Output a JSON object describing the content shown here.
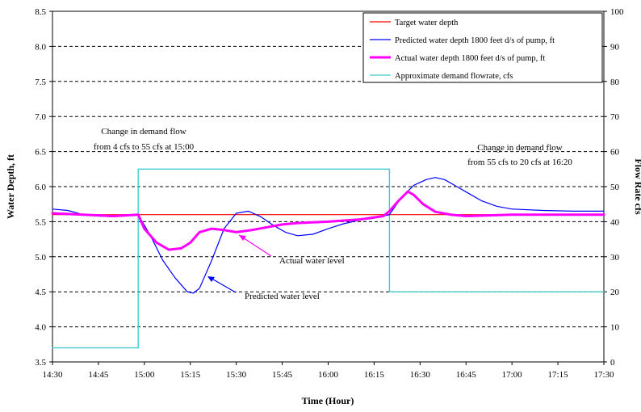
{
  "chart_data": {
    "type": "line",
    "xlabel": "Time (Hour)",
    "ylabel_left": "Water Depth, ft",
    "ylabel_right": "Flow Rate cfs",
    "x_ticks": [
      "14:30",
      "14:45",
      "15:00",
      "15:15",
      "15:30",
      "15:45",
      "16:00",
      "16:15",
      "16:30",
      "16:45",
      "17:00",
      "17:15",
      "17:30"
    ],
    "x_range_minutes": [
      0,
      180
    ],
    "ylim_left": [
      3.5,
      8.5
    ],
    "ylim_right": [
      0,
      100
    ],
    "y_ticks_left": [
      "3.5",
      "4.0",
      "4.5",
      "5.0",
      "5.5",
      "6.0",
      "6.5",
      "7.0",
      "7.5",
      "8.0",
      "8.5"
    ],
    "y_ticks_right": [
      "0",
      "10",
      "20",
      "30",
      "40",
      "50",
      "60",
      "70",
      "80",
      "90",
      "100"
    ],
    "grid": "horizontal dashed",
    "legend_position": "top-right",
    "series": [
      {
        "name": "Target water depth",
        "axis": "left",
        "color": "#ff0000",
        "x": [
          "14:30",
          "17:30"
        ],
        "y": [
          5.6,
          5.6
        ]
      },
      {
        "name": "Predicted water depth 1800 feet d/s of pump, ft",
        "axis": "left",
        "color": "#0000ff",
        "x": [
          "14:30",
          "14:35",
          "14:40",
          "14:45",
          "14:50",
          "14:55",
          "14:58",
          "15:02",
          "15:06",
          "15:10",
          "15:14",
          "15:16",
          "15:18",
          "15:22",
          "15:26",
          "15:30",
          "15:34",
          "15:38",
          "15:42",
          "15:46",
          "15:50",
          "15:55",
          "16:00",
          "16:05",
          "16:10",
          "16:15",
          "16:18",
          "16:20",
          "16:24",
          "16:28",
          "16:32",
          "16:35",
          "16:38",
          "16:42",
          "16:46",
          "16:50",
          "16:55",
          "17:00",
          "17:10",
          "17:20",
          "17:30"
        ],
        "y": [
          5.68,
          5.66,
          5.6,
          5.58,
          5.57,
          5.6,
          5.6,
          5.3,
          4.95,
          4.7,
          4.5,
          4.48,
          4.55,
          4.95,
          5.4,
          5.62,
          5.65,
          5.57,
          5.45,
          5.35,
          5.3,
          5.32,
          5.4,
          5.47,
          5.52,
          5.55,
          5.58,
          5.6,
          5.85,
          6.02,
          6.1,
          6.13,
          6.1,
          6.0,
          5.9,
          5.8,
          5.72,
          5.68,
          5.66,
          5.65,
          5.65
        ]
      },
      {
        "name": "Actual water depth 1800 feet d/s of pump, ft",
        "axis": "left",
        "color": "#ff00ff",
        "x": [
          "14:30",
          "14:40",
          "14:50",
          "14:58",
          "15:00",
          "15:04",
          "15:08",
          "15:12",
          "15:15",
          "15:18",
          "15:22",
          "15:26",
          "15:30",
          "15:35",
          "15:40",
          "15:45",
          "15:50",
          "16:00",
          "16:10",
          "16:18",
          "16:20",
          "16:23",
          "16:26",
          "16:28",
          "16:31",
          "16:35",
          "16:40",
          "16:45",
          "17:00",
          "17:15",
          "17:30"
        ],
        "y": [
          5.62,
          5.6,
          5.58,
          5.6,
          5.4,
          5.2,
          5.1,
          5.12,
          5.2,
          5.35,
          5.4,
          5.38,
          5.35,
          5.38,
          5.42,
          5.46,
          5.48,
          5.5,
          5.53,
          5.58,
          5.65,
          5.8,
          5.93,
          5.88,
          5.75,
          5.64,
          5.6,
          5.58,
          5.6,
          5.6,
          5.6
        ]
      },
      {
        "name": "Approximate demand flowrate, cfs",
        "axis": "right",
        "color": "#44cccc",
        "x": [
          "14:30",
          "14:58",
          "14:58",
          "16:20",
          "16:20",
          "17:30"
        ],
        "y": [
          4,
          4,
          55,
          55,
          20,
          20
        ]
      }
    ],
    "annotations": [
      {
        "id": "demand-change-1",
        "lines": [
          "Change in demand flow",
          "from 4 cfs to 55 cfs at 15:00"
        ]
      },
      {
        "id": "demand-change-2",
        "lines": [
          "Change in demand flow",
          "from 55 cfs to 20 cfs at 16:20"
        ]
      },
      {
        "id": "actual-label",
        "text": "Actual water level"
      },
      {
        "id": "predicted-label",
        "text": "Predicted water level"
      }
    ]
  }
}
